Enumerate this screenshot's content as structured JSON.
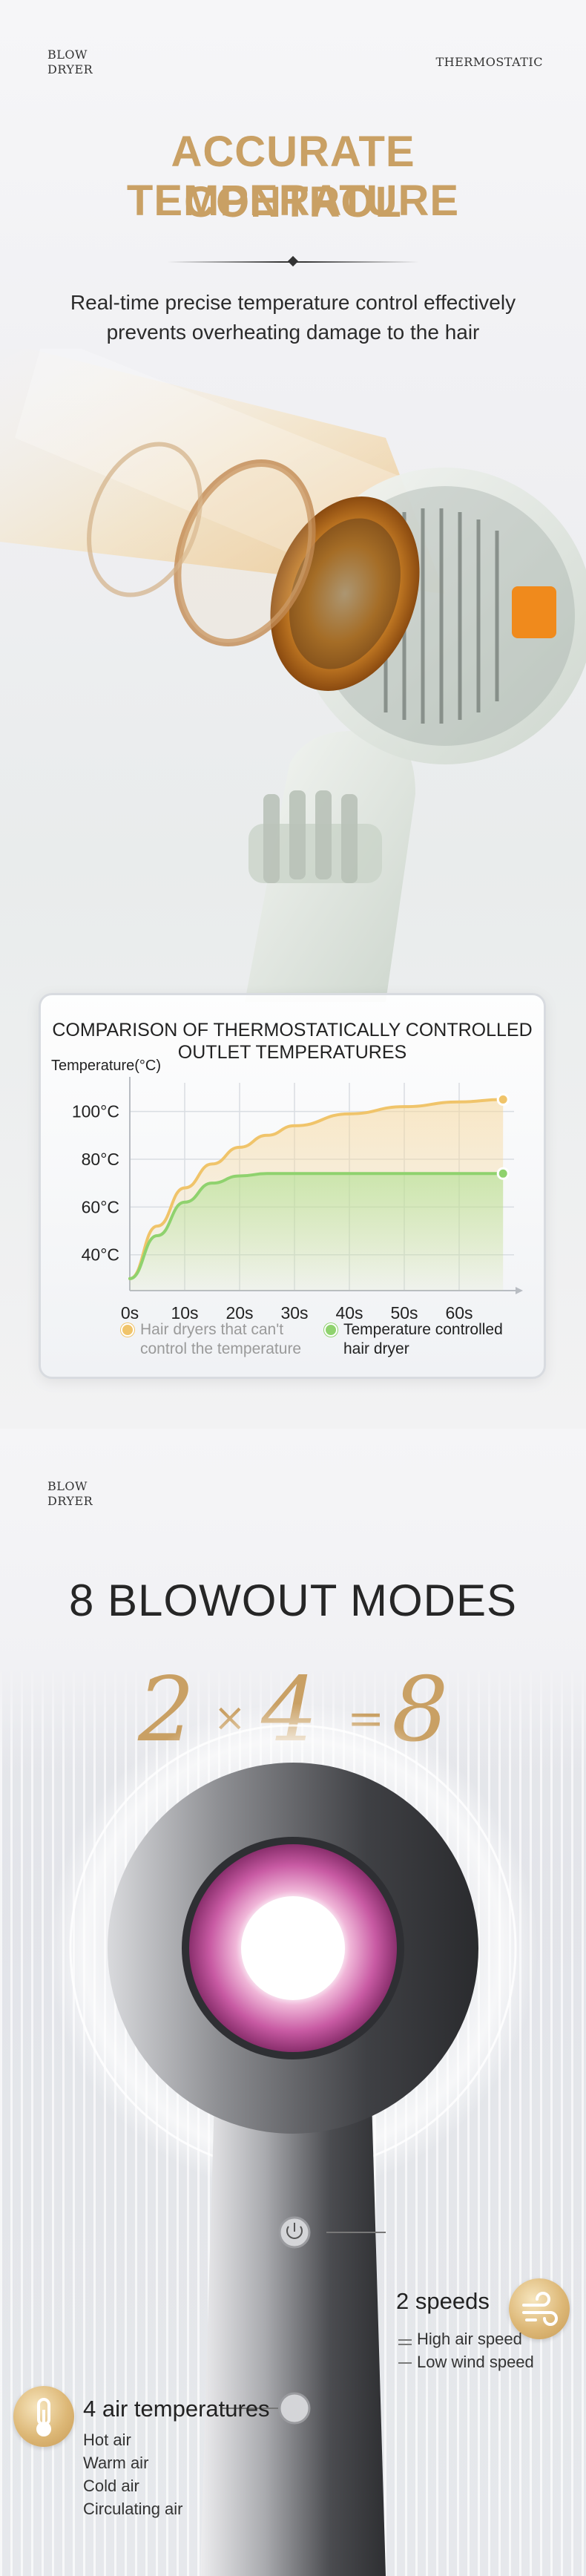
{
  "section1": {
    "brand_line1": "BLOW",
    "brand_line2": "DRYER",
    "tag": "THERMOSTATIC",
    "headline_line1": "ACCURATE TEMPERATURE",
    "headline_line2": "CONTROL",
    "subtitle_line1": "Real-time precise temperature control effectively",
    "subtitle_line2": "prevents overheating damage to the hair"
  },
  "chart_data": {
    "type": "line",
    "title_line1": "COMPARISON OF THERMOSTATICALLY CONTROLLED",
    "title_line2": "OUTLET TEMPERATURES",
    "ylabel": "Temperature(°C)",
    "xlabel": "",
    "x": [
      0,
      10,
      20,
      30,
      40,
      50,
      60
    ],
    "x_tick_labels": [
      "0s",
      "10s",
      "20s",
      "30s",
      "40s",
      "50s",
      "60s"
    ],
    "y_tick_labels": [
      "100°C",
      "80°C",
      "60°C",
      "40°C"
    ],
    "y_tick_values": [
      100,
      80,
      60,
      40
    ],
    "xlim": [
      0,
      70
    ],
    "ylim": [
      25,
      112
    ],
    "grid": true,
    "legend_position": "bottom",
    "series": [
      {
        "name_line1": "Hair dryers that can't",
        "name_line2": "control the temperature",
        "color": "#f0c46a",
        "x": [
          0,
          5,
          10,
          15,
          20,
          25,
          30,
          40,
          50,
          60,
          68
        ],
        "y": [
          30,
          52,
          68,
          78,
          85,
          90,
          94,
          99,
          102,
          104,
          105
        ]
      },
      {
        "name_line1": "Temperature controlled",
        "name_line2": "hair dryer",
        "color": "#8fd26e",
        "x": [
          0,
          5,
          10,
          15,
          20,
          25,
          30,
          40,
          50,
          60,
          68
        ],
        "y": [
          30,
          48,
          62,
          70,
          73,
          74,
          74,
          74,
          74,
          74,
          74
        ]
      }
    ]
  },
  "section2": {
    "brand_line1": "BLOW",
    "brand_line2": "DRYER",
    "title": "8 BLOWOUT MODES",
    "formula": {
      "a": "2",
      "op1": "×",
      "b": "4",
      "op2": "=",
      "c": "8"
    },
    "speeds": {
      "title": "2 speeds",
      "icon": "wind-icon",
      "items": [
        "High air speed",
        "Low wind speed"
      ]
    },
    "temperatures": {
      "title": "4 air temperatures",
      "icon": "thermometer-icon",
      "items": [
        "Hot air",
        "Warm air",
        "Cold air",
        "Circulating air"
      ]
    }
  },
  "colors": {
    "gold": "#c9a064",
    "pink": "#d97ab8"
  }
}
